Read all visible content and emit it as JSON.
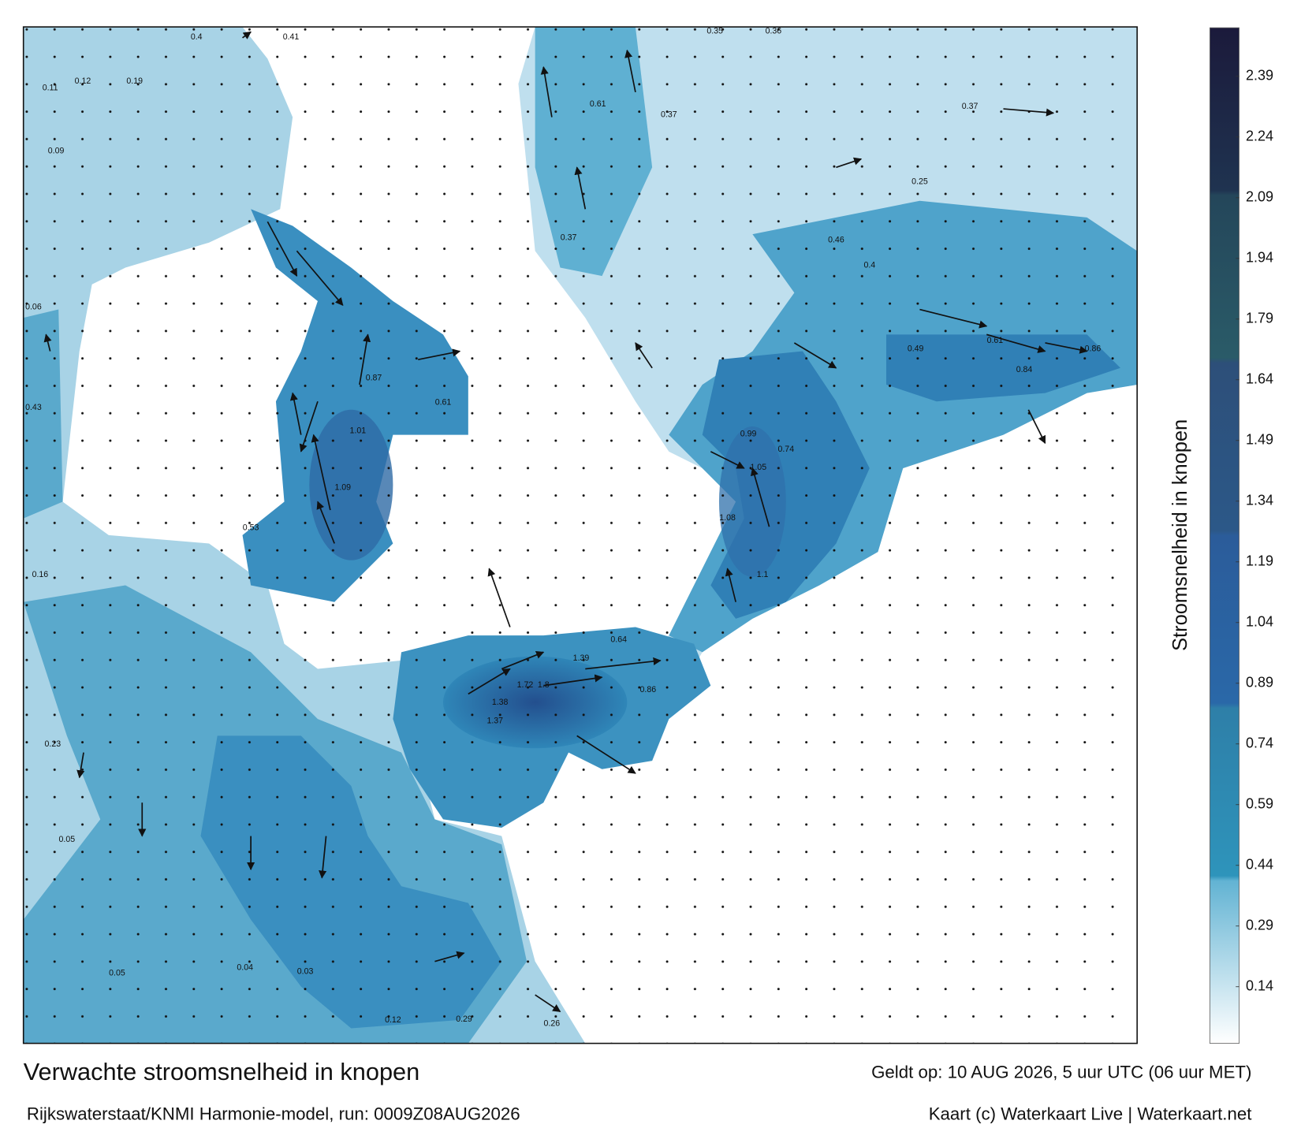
{
  "map": {
    "title": "Verwachte stroomsnelheid in knopen",
    "subtitle": "Rijkswaterstaat/KNMI Harmonie-model, run: 0009Z08AUG2026",
    "valid_time": "Geldt op: 10 AUG 2026, 5 uur UTC (06 uur MET)",
    "credit": "Kaart (c) Waterkaart Live | Waterkaart.net",
    "colorbar": {
      "label": "Stroomsnelheid in knopen",
      "lim": [
        0,
        2.51
      ],
      "ticks": [
        0.14,
        0.29,
        0.44,
        0.59,
        0.74,
        0.89,
        1.04,
        1.19,
        1.34,
        1.49,
        1.64,
        1.79,
        1.94,
        2.09,
        2.24,
        2.39
      ]
    },
    "current_labels": [
      0.4,
      0.41,
      0.11,
      0.12,
      0.19,
      0.09,
      0.06,
      0.43,
      0.16,
      0.23,
      0.05,
      0.05,
      0.04,
      0.03,
      0.53,
      1.09,
      1.01,
      0.87,
      0.61,
      1.38,
      1.72,
      1.8,
      1.39,
      1.37,
      0.64,
      0.86,
      0.99,
      1.05,
      1.08,
      1.1,
      0.74,
      0.37,
      0.35,
      0.36,
      0.61,
      0.86,
      0.84,
      0.49,
      0.46,
      0.4,
      0.61,
      0.37,
      0.29,
      0.26,
      0.12,
      0.25,
      0.37
    ]
  }
}
